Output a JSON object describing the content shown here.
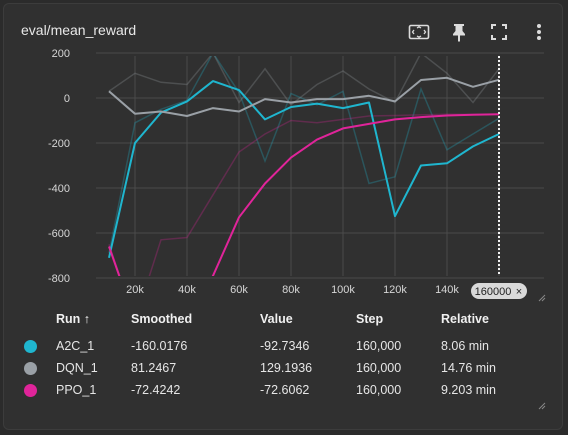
{
  "card": {
    "title": "eval/mean_reward",
    "toolbar": {
      "icons": [
        "fit-to-data-icon",
        "pin-icon",
        "fullscreen-icon",
        "more-vert-icon"
      ]
    }
  },
  "hover": {
    "step_label": "160000",
    "close_glyph": "×"
  },
  "chart_data": {
    "type": "line",
    "xlabel": "",
    "ylabel": "",
    "x_ticks": [
      "20k",
      "40k",
      "60k",
      "80k",
      "100k",
      "120k",
      "140k",
      "1"
    ],
    "y_ticks": [
      "200",
      "0",
      "-200",
      "-400",
      "-600",
      "-800"
    ],
    "xlim": [
      5000,
      175000
    ],
    "ylim": [
      -800,
      200
    ],
    "grid": true,
    "hover_step": 160000,
    "series": [
      {
        "name": "A2C_1",
        "color": "#1fb6cf",
        "x": [
          10000,
          20000,
          30000,
          40000,
          50000,
          60000,
          70000,
          80000,
          90000,
          100000,
          110000,
          120000,
          130000,
          140000,
          150000,
          160000
        ],
        "raw": [
          -690,
          -110,
          -50,
          -10,
          200,
          25,
          -280,
          20,
          -30,
          30,
          -380,
          -350,
          40,
          -230,
          -160,
          -90
        ],
        "smoothed": [
          -710,
          -200,
          -65,
          -15,
          75,
          35,
          -95,
          -40,
          -25,
          -45,
          -20,
          -525,
          -300,
          -290,
          -215,
          -160
        ]
      },
      {
        "name": "DQN_1",
        "color": "#9aa0a6",
        "x": [
          10000,
          20000,
          30000,
          40000,
          50000,
          60000,
          70000,
          80000,
          90000,
          100000,
          110000,
          120000,
          130000,
          140000,
          150000,
          160000
        ],
        "raw": [
          30,
          110,
          70,
          60,
          200,
          -20,
          130,
          -30,
          60,
          120,
          40,
          -20,
          200,
          110,
          -20,
          130
        ],
        "smoothed": [
          30,
          -70,
          -60,
          -80,
          -45,
          -60,
          -5,
          -20,
          -5,
          -5,
          10,
          -15,
          80,
          90,
          50,
          81
        ]
      },
      {
        "name": "PPO_1",
        "color": "#e0249a",
        "x": [
          10000,
          20000,
          30000,
          40000,
          50000,
          60000,
          70000,
          80000,
          90000,
          100000,
          110000,
          120000,
          130000,
          140000,
          150000,
          160000
        ],
        "raw": [
          -650,
          -990,
          -630,
          -620,
          -430,
          -240,
          -160,
          -100,
          -110,
          -95,
          -80,
          -78,
          -75,
          -72,
          -73,
          -72
        ],
        "smoothed": [
          -660,
          -990,
          -990,
          -990,
          -790,
          -530,
          -380,
          -265,
          -185,
          -135,
          -115,
          -95,
          -85,
          -78,
          -74,
          -72
        ]
      }
    ]
  },
  "table": {
    "headers": {
      "run": "Run ↑",
      "smoothed": "Smoothed",
      "value": "Value",
      "step": "Step",
      "relative": "Relative"
    },
    "rows": [
      {
        "color": "#1fb6cf",
        "run": "A2C_1",
        "smoothed": "-160.0176",
        "value": "-92.7346",
        "step": "160,000",
        "relative": "8.06 min"
      },
      {
        "color": "#9aa0a6",
        "run": "DQN_1",
        "smoothed": "81.2467",
        "value": "129.1936",
        "step": "160,000",
        "relative": "14.76 min"
      },
      {
        "color": "#e0249a",
        "run": "PPO_1",
        "smoothed": "-72.4242",
        "value": "-72.6062",
        "step": "160,000",
        "relative": "9.203 min"
      }
    ]
  }
}
